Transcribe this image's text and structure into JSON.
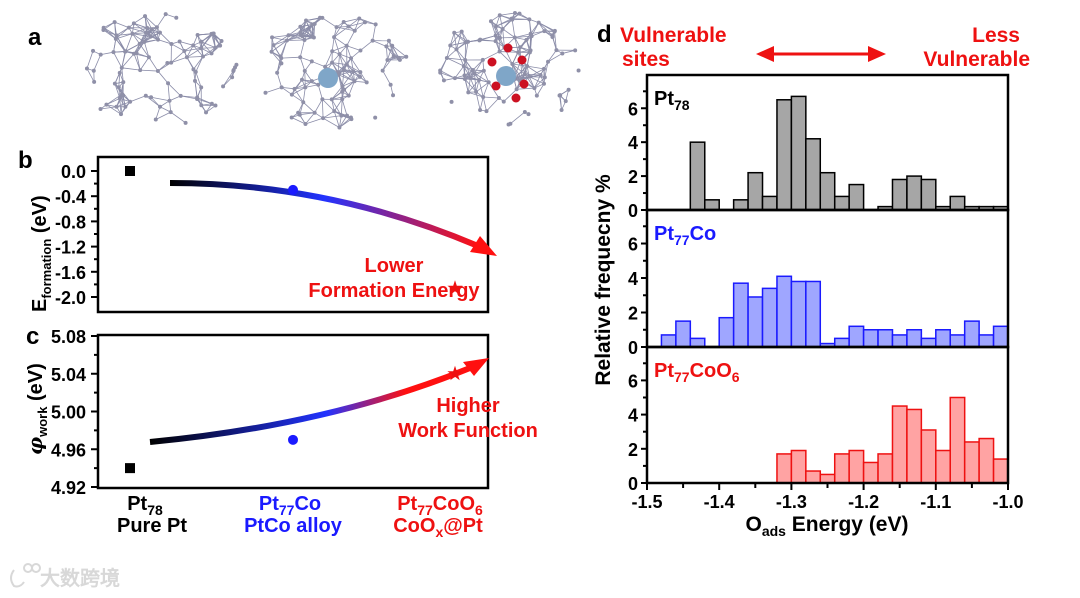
{
  "panel_labels": {
    "a": "a",
    "b": "b",
    "c": "c",
    "d": "d"
  },
  "watermark": "大数跨境",
  "colors": {
    "pt": "#000000",
    "ptco": "#1a1aff",
    "cooxpt": "#ee1111",
    "hist_gray": "#a6a6a6",
    "hist_blue": "#9fa6ff",
    "hist_red": "#ffa3a3"
  },
  "categories": [
    {
      "name_base": "Pt",
      "name_sub": "78",
      "desc": "Pure Pt"
    },
    {
      "name_base": "Pt",
      "name_sub": "77",
      "name_tail": "Co",
      "desc": "PtCo alloy"
    },
    {
      "name_base": "Pt",
      "name_sub": "77",
      "name_tail": "CoO",
      "name_sub2": "6",
      "desc_base": "CoO",
      "desc_sub": "x",
      "desc_tail": "@Pt"
    }
  ],
  "chart_data": [
    {
      "panel": "b",
      "type": "scatter",
      "ylabel_base": "E",
      "ylabel_sub": "formation",
      "ylabel_tail": " (eV)",
      "ylim": [
        -2.2,
        0.2
      ],
      "yticks": [
        "0.0",
        "-0.4",
        "-0.8",
        "-1.2",
        "-1.6",
        "-2.0"
      ],
      "values": [
        0.0,
        -0.3,
        -1.86
      ],
      "annotation": [
        "Lower",
        "Formation Energy"
      ]
    },
    {
      "panel": "c",
      "type": "scatter",
      "ylabel_base": "φ",
      "ylabel_sub": "work",
      "ylabel_tail": " (eV)",
      "ylim": [
        4.92,
        5.08
      ],
      "yticks": [
        "5.08",
        "5.04",
        "5.00",
        "4.96",
        "4.92"
      ],
      "values": [
        4.94,
        4.97,
        5.04
      ],
      "annotation": [
        "Higher",
        "Work Function"
      ]
    },
    {
      "panel": "d",
      "type": "bar",
      "title_left": [
        "Vulnerable",
        "sites"
      ],
      "title_right": [
        "Less",
        "Vulnerable"
      ],
      "ylabel": "Relative frequecny %",
      "xlabel_base": "O",
      "xlabel_sub": "ads",
      "xlabel_tail": " Energy (eV)",
      "xlim": [
        -1.5,
        -1.0
      ],
      "ylim": [
        0,
        7
      ],
      "bin_width": 0.02,
      "xticks": [
        "-1.5",
        "-1.4",
        "-1.3",
        "-1.2",
        "-1.1",
        "-1.0"
      ],
      "yticks": [
        "0",
        "2",
        "4",
        "6"
      ],
      "series": [
        {
          "name_base": "Pt",
          "name_sub": "78",
          "name_tail": "",
          "name_sub2": "",
          "color_key": "pt",
          "fill_key": "hist_gray",
          "bin_start": -1.44,
          "values": [
            4.0,
            0.6,
            0,
            0.6,
            2.2,
            0.8,
            6.5,
            6.7,
            4.2,
            2.2,
            0.8,
            1.5,
            0,
            0.2,
            1.8,
            2.0,
            1.8,
            0.2,
            0.8,
            0.2,
            0.2,
            0.2
          ]
        },
        {
          "name_base": "Pt",
          "name_sub": "77",
          "name_tail": "Co",
          "name_sub2": "",
          "color_key": "ptco",
          "fill_key": "hist_blue",
          "bin_start": -1.48,
          "values": [
            0.7,
            1.5,
            0.5,
            0,
            1.7,
            3.7,
            2.9,
            3.4,
            4.1,
            3.8,
            3.8,
            0.2,
            0.5,
            1.2,
            1.0,
            1.0,
            0.7,
            1.0,
            0.5,
            1.0,
            0.7,
            1.5,
            0.7,
            1.2
          ]
        },
        {
          "name_base": "Pt",
          "name_sub": "77",
          "name_tail": "CoO",
          "name_sub2": "6",
          "color_key": "cooxpt",
          "fill_key": "hist_red",
          "bin_start": -1.32,
          "values": [
            1.7,
            1.9,
            0.7,
            0.5,
            1.7,
            1.9,
            1.2,
            1.7,
            4.5,
            4.3,
            3.1,
            1.9,
            5.0,
            2.4,
            2.6,
            1.4
          ]
        }
      ]
    }
  ]
}
